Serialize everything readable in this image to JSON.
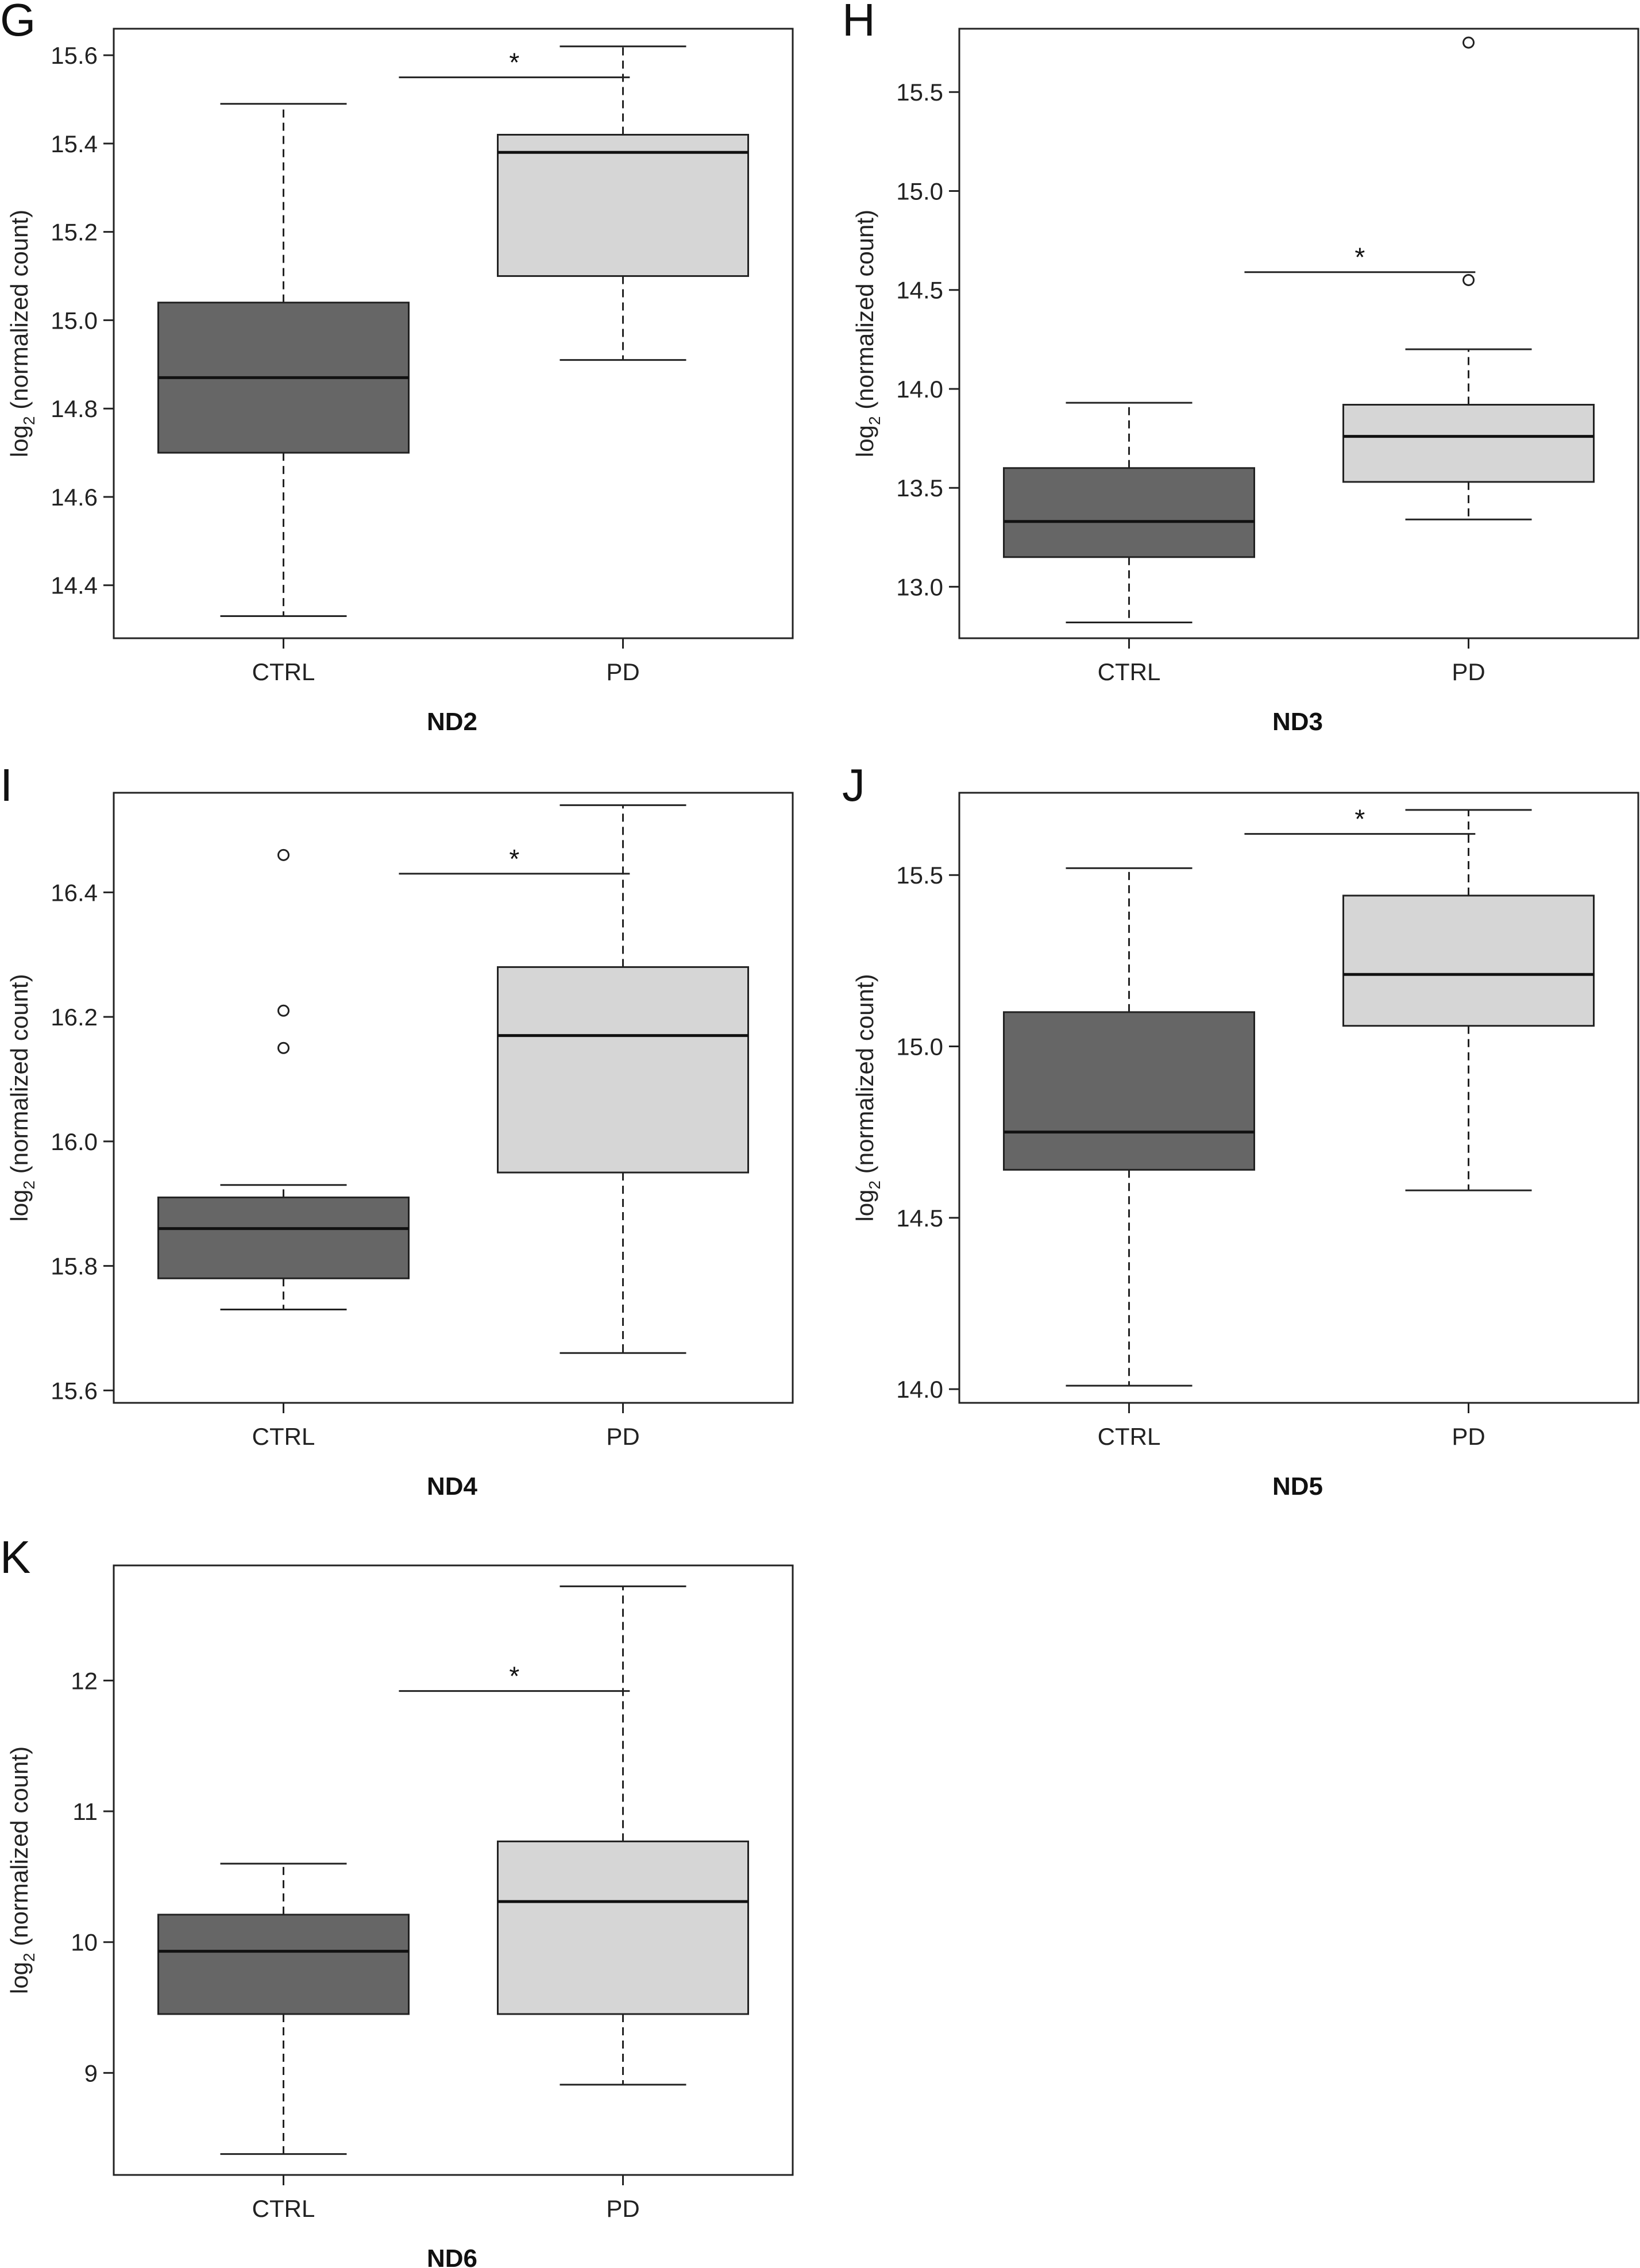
{
  "chart_data": [
    {
      "panel": "G",
      "type": "box",
      "xlabel": "ND2",
      "ylabel": {
        "prefix": "log",
        "sub": "2",
        "rest": " (normalized count)"
      },
      "ylim": [
        14.28,
        15.66
      ],
      "yticks": [
        "14.4",
        "14.6",
        "14.8",
        "15.0",
        "15.2",
        "15.4",
        "15.6"
      ],
      "categories": [
        "CTRL",
        "PD"
      ],
      "colors": [
        "#666666",
        "#d6d6d6"
      ],
      "boxes": [
        {
          "whisker_low": 14.33,
          "q1": 14.7,
          "median": 14.87,
          "q3": 15.04,
          "whisker_high": 15.49,
          "outliers": []
        },
        {
          "whisker_low": 14.91,
          "q1": 15.1,
          "median": 15.38,
          "q3": 15.42,
          "whisker_high": 15.62,
          "outliers": []
        }
      ],
      "significance": {
        "label": "*",
        "y": 15.55
      }
    },
    {
      "panel": "H",
      "type": "box",
      "xlabel": "ND3",
      "ylabel": {
        "prefix": "log",
        "sub": "2",
        "rest": " (normalized count)"
      },
      "ylim": [
        12.74,
        15.82
      ],
      "yticks": [
        "13.0",
        "13.5",
        "14.0",
        "14.5",
        "15.0",
        "15.5"
      ],
      "categories": [
        "CTRL",
        "PD"
      ],
      "colors": [
        "#666666",
        "#d6d6d6"
      ],
      "boxes": [
        {
          "whisker_low": 12.82,
          "q1": 13.15,
          "median": 13.33,
          "q3": 13.6,
          "whisker_high": 13.93,
          "outliers": []
        },
        {
          "whisker_low": 13.34,
          "q1": 13.53,
          "median": 13.76,
          "q3": 13.92,
          "whisker_high": 14.2,
          "outliers": [
            14.55,
            15.75
          ]
        }
      ],
      "significance": {
        "label": "*",
        "y": 14.59
      }
    },
    {
      "panel": "I",
      "type": "box",
      "xlabel": "ND4",
      "ylabel": {
        "prefix": "log",
        "sub": "2",
        "rest": " (normalized count)"
      },
      "ylim": [
        15.58,
        16.56
      ],
      "yticks": [
        "15.6",
        "15.8",
        "16.0",
        "16.2",
        "16.4"
      ],
      "categories": [
        "CTRL",
        "PD"
      ],
      "colors": [
        "#666666",
        "#d6d6d6"
      ],
      "boxes": [
        {
          "whisker_low": 15.73,
          "q1": 15.78,
          "median": 15.86,
          "q3": 15.91,
          "whisker_high": 15.93,
          "outliers": [
            16.15,
            16.21,
            16.46
          ]
        },
        {
          "whisker_low": 15.66,
          "q1": 15.95,
          "median": 16.17,
          "q3": 16.28,
          "whisker_high": 16.54,
          "outliers": []
        }
      ],
      "significance": {
        "label": "*",
        "y": 16.43
      }
    },
    {
      "panel": "J",
      "type": "box",
      "xlabel": "ND5",
      "ylabel": {
        "prefix": "log",
        "sub": "2",
        "rest": " (normalized count)"
      },
      "ylim": [
        13.96,
        15.74
      ],
      "yticks": [
        "14.0",
        "14.5",
        "15.0",
        "15.5"
      ],
      "categories": [
        "CTRL",
        "PD"
      ],
      "colors": [
        "#666666",
        "#d6d6d6"
      ],
      "boxes": [
        {
          "whisker_low": 14.01,
          "q1": 14.64,
          "median": 14.75,
          "q3": 15.1,
          "whisker_high": 15.52,
          "outliers": []
        },
        {
          "whisker_low": 14.58,
          "q1": 15.06,
          "median": 15.21,
          "q3": 15.44,
          "whisker_high": 15.69,
          "outliers": []
        }
      ],
      "significance": {
        "label": "*",
        "y": 15.62
      }
    },
    {
      "panel": "K",
      "type": "box",
      "xlabel": "ND6",
      "ylabel": {
        "prefix": "log",
        "sub": "2",
        "rest": " (normalized count)"
      },
      "ylim": [
        8.22,
        12.88
      ],
      "yticks": [
        "9",
        "10",
        "11",
        "12"
      ],
      "categories": [
        "CTRL",
        "PD"
      ],
      "colors": [
        "#666666",
        "#d6d6d6"
      ],
      "boxes": [
        {
          "whisker_low": 8.38,
          "q1": 9.45,
          "median": 9.93,
          "q3": 10.21,
          "whisker_high": 10.6,
          "outliers": []
        },
        {
          "whisker_low": 8.91,
          "q1": 9.45,
          "median": 10.31,
          "q3": 10.77,
          "whisker_high": 12.72,
          "outliers": []
        }
      ],
      "significance": {
        "label": "*",
        "y": 11.92
      }
    }
  ]
}
